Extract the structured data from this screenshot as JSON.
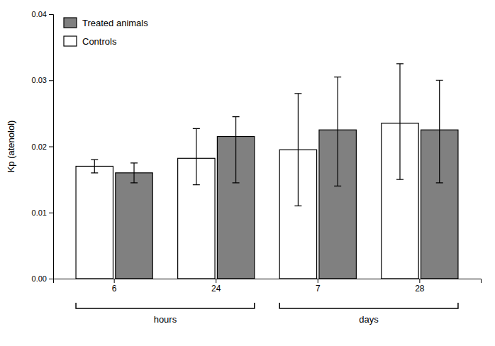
{
  "chart_data": {
    "type": "bar",
    "categories": [
      "6",
      "24",
      "7",
      "28"
    ],
    "series": [
      {
        "name": "Controls",
        "color": "#FFFFFF",
        "values": [
          0.017,
          0.0182,
          0.0195,
          0.0235
        ],
        "errors_upper": [
          0.001,
          0.0045,
          0.0085,
          0.009
        ],
        "errors_lower": [
          0.001,
          0.004,
          0.0085,
          0.0085
        ]
      },
      {
        "name": "Treated animals",
        "color": "#808080",
        "values": [
          0.016,
          0.0215,
          0.0225,
          0.0225
        ],
        "errors_upper": [
          0.0015,
          0.003,
          0.008,
          0.0075
        ],
        "errors_lower": [
          0.0015,
          0.007,
          0.0085,
          0.008
        ]
      }
    ],
    "y_label": "Kp (atenolol)",
    "ylim": [
      0.0,
      0.04
    ],
    "yticks": [
      {
        "value": 0.0,
        "label": "0.00"
      },
      {
        "value": 0.01,
        "label": "0.01"
      },
      {
        "value": 0.02,
        "label": "0.02"
      },
      {
        "value": 0.03,
        "label": "0.03"
      },
      {
        "value": 0.04,
        "label": "0.04"
      }
    ],
    "annotations": [
      {
        "text": "hours",
        "categories": [
          "6",
          "24"
        ]
      },
      {
        "text": "days",
        "categories": [
          "7",
          "28"
        ]
      }
    ],
    "legend": "upper left",
    "grid": false
  }
}
